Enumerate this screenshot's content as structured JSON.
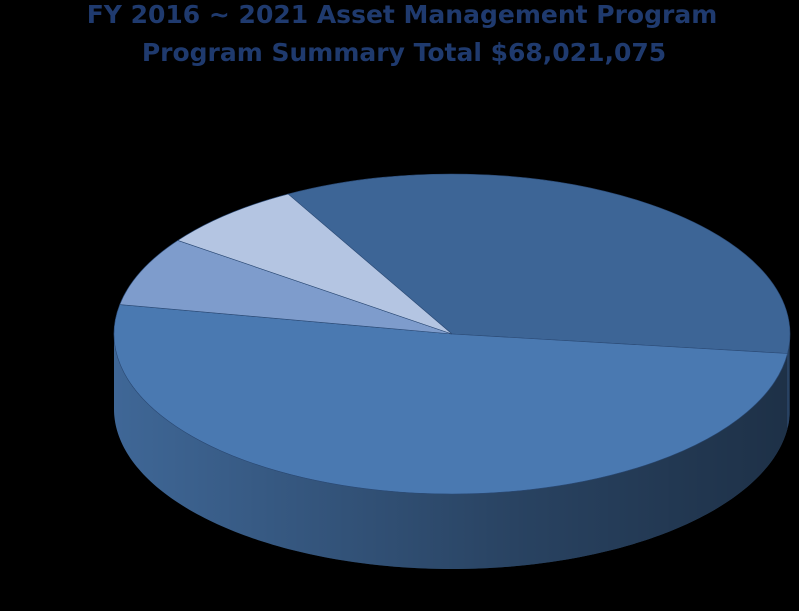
{
  "chart_data": {
    "type": "pie3d",
    "title": "FY 2016 ~ 2021 Asset Management Program",
    "subtitle": "Program Summary Total $68,021,075",
    "values": [
      35,
      51,
      7,
      7
    ],
    "colors": [
      "#3d6596",
      "#4a79b1",
      "#7e9ccc",
      "#b4c5e2"
    ],
    "start_angle": 241
  }
}
